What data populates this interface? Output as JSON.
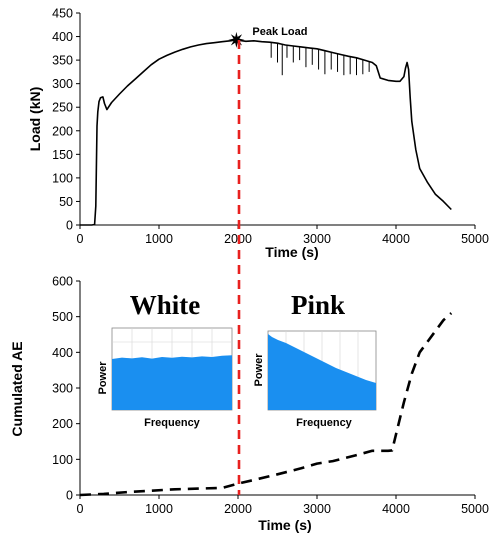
{
  "colors": {
    "axis": "#000000",
    "series": "#000000",
    "marker_line": "#e8211f",
    "spectrum": "#1a8ff0"
  },
  "chart_data": [
    {
      "type": "line",
      "title": "",
      "xlabel": "Time (s)",
      "ylabel": "Load (kN)",
      "xlim": [
        0,
        5000
      ],
      "ylim": [
        0,
        450
      ],
      "xticks": [
        0,
        1000,
        2000,
        3000,
        4000,
        5000
      ],
      "yticks": [
        0,
        50,
        100,
        150,
        200,
        250,
        300,
        350,
        400,
        450
      ],
      "grid": false,
      "annotations": [
        {
          "text": "Peak Load",
          "x": 1980,
          "y": 393,
          "marker": "star"
        }
      ],
      "vline_x": 2000,
      "series": [
        {
          "style": "solid",
          "x": [
            0,
            150,
            185,
            200,
            215,
            225,
            240,
            260,
            290,
            310,
            340,
            400,
            500,
            600,
            700,
            800,
            900,
            1000,
            1100,
            1200,
            1300,
            1400,
            1500,
            1600,
            1700,
            1800,
            1900,
            1980,
            2100,
            2200,
            2300,
            2400,
            2500,
            2550,
            2600,
            2700,
            2800,
            2900,
            3000,
            3100,
            3200,
            3300,
            3400,
            3500,
            3600,
            3700,
            3750,
            3800,
            3900,
            4000,
            4050,
            4100,
            4120,
            4140,
            4160,
            4180,
            4200,
            4250,
            4300,
            4400,
            4500,
            4600,
            4700
          ],
          "y": [
            0,
            0,
            1,
            40,
            210,
            240,
            262,
            270,
            272,
            258,
            245,
            260,
            278,
            295,
            310,
            325,
            340,
            352,
            360,
            367,
            373,
            378,
            382,
            385,
            387,
            389,
            391,
            393,
            390,
            391,
            389,
            388,
            386,
            384,
            382,
            380,
            378,
            376,
            374,
            370,
            366,
            362,
            358,
            355,
            350,
            345,
            338,
            312,
            307,
            305,
            305,
            315,
            333,
            345,
            330,
            270,
            220,
            160,
            120,
            90,
            65,
            50,
            33
          ]
        }
      ],
      "spikes": [
        {
          "x": 2420,
          "y": 355
        },
        {
          "x": 2500,
          "y": 345
        },
        {
          "x": 2560,
          "y": 318
        },
        {
          "x": 2620,
          "y": 355
        },
        {
          "x": 2700,
          "y": 345
        },
        {
          "x": 2780,
          "y": 350
        },
        {
          "x": 2860,
          "y": 335
        },
        {
          "x": 2940,
          "y": 340
        },
        {
          "x": 3020,
          "y": 330
        },
        {
          "x": 3100,
          "y": 320
        },
        {
          "x": 3180,
          "y": 330
        },
        {
          "x": 3260,
          "y": 325
        },
        {
          "x": 3340,
          "y": 318
        },
        {
          "x": 3420,
          "y": 320
        },
        {
          "x": 3500,
          "y": 318
        },
        {
          "x": 3580,
          "y": 320
        },
        {
          "x": 3660,
          "y": 325
        }
      ]
    },
    {
      "type": "line",
      "title": "",
      "xlabel": "Time (s)",
      "ylabel": "Cumulated AE",
      "xlim": [
        0,
        5000
      ],
      "ylim": [
        0,
        600
      ],
      "xticks": [
        0,
        1000,
        2000,
        3000,
        4000,
        5000
      ],
      "yticks": [
        0,
        100,
        200,
        300,
        400,
        500,
        600
      ],
      "grid": false,
      "vline_x": 2000,
      "annotations": [
        {
          "text": "White",
          "x": 1300,
          "y": 520
        },
        {
          "text": "Pink",
          "x": 3300,
          "y": 520
        }
      ],
      "series": [
        {
          "style": "dashed",
          "x": [
            0,
            300,
            600,
            900,
            1200,
            1500,
            1800,
            2000,
            2200,
            2500,
            2800,
            3000,
            3200,
            3500,
            3700,
            3900,
            3950,
            4000,
            4100,
            4200,
            4300,
            4400,
            4500,
            4600,
            4700
          ],
          "y": [
            0,
            3,
            8,
            12,
            16,
            18,
            20,
            32,
            42,
            58,
            75,
            88,
            95,
            112,
            124,
            124,
            125,
            170,
            260,
            340,
            400,
            430,
            460,
            490,
            510
          ]
        }
      ],
      "insets": [
        {
          "name": "white-noise",
          "xlabel": "Frequency",
          "ylabel": "Power",
          "shape": "flat"
        },
        {
          "name": "pink-noise",
          "xlabel": "Frequency",
          "ylabel": "Power",
          "shape": "decreasing"
        }
      ]
    }
  ]
}
